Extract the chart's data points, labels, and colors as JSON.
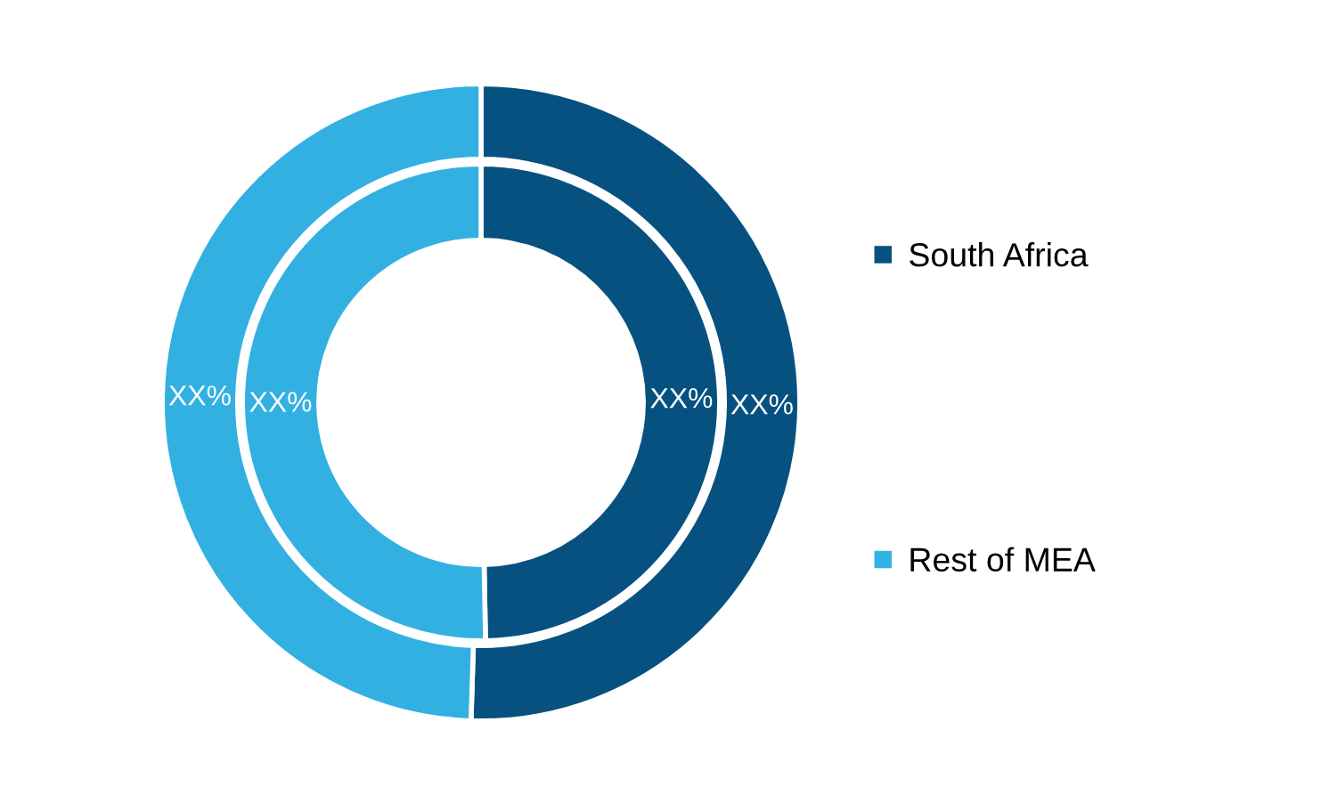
{
  "chart_data": {
    "type": "donut",
    "categories": [
      "South Africa",
      "Rest of MEA"
    ],
    "colors": [
      "#06517f",
      "#33b0e2"
    ],
    "series": [
      {
        "values": [
          49.7,
          50.3
        ],
        "value_labels": [
          "XX%",
          "XX%"
        ]
      },
      {
        "values": [
          50.5,
          49.5
        ],
        "value_labels": [
          "XX%",
          "XX%"
        ]
      }
    ],
    "legend": "right"
  }
}
